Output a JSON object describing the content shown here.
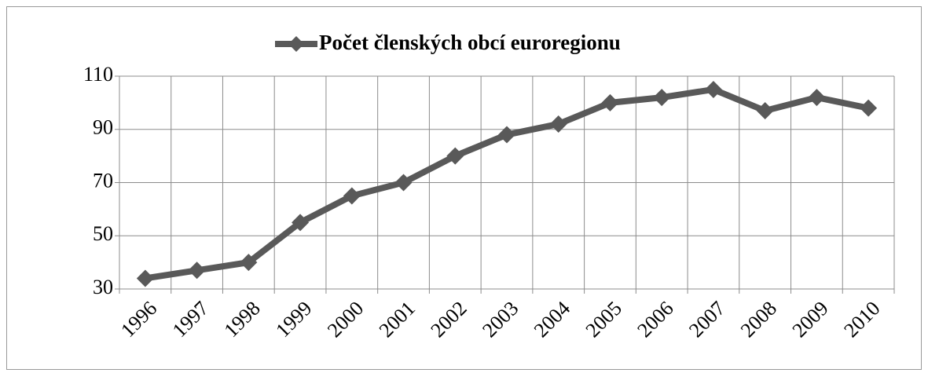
{
  "chart_data": {
    "type": "line",
    "categories": [
      "1996",
      "1997",
      "1998",
      "1999",
      "2000",
      "2001",
      "2002",
      "2003",
      "2004",
      "2005",
      "2006",
      "2007",
      "2008",
      "2009",
      "2010"
    ],
    "series": [
      {
        "name": "Počet členských obcí euroregionu",
        "color": "#595959",
        "values": [
          34,
          37,
          40,
          55,
          65,
          70,
          80,
          88,
          92,
          100,
          102,
          105,
          97,
          102,
          98
        ]
      }
    ],
    "ylim": [
      30,
      110
    ],
    "yticks": [
      30,
      50,
      70,
      90,
      110
    ],
    "grid": true,
    "legend": "top"
  }
}
